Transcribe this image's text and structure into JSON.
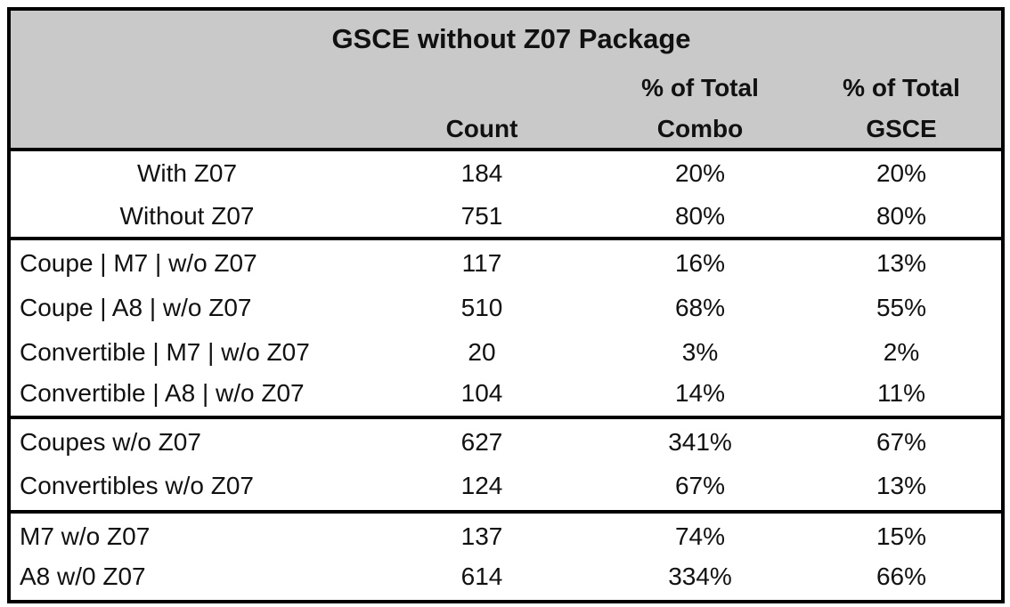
{
  "title": "GSCE without Z07 Package",
  "columns": [
    {
      "lines": [
        "Count"
      ]
    },
    {
      "lines": [
        "% of Total",
        "Combo"
      ]
    },
    {
      "lines": [
        "% of Total",
        "GSCE"
      ]
    }
  ],
  "groups": [
    {
      "rows": [
        [
          "With Z07",
          "184",
          "20%",
          "20%"
        ],
        [
          "Without Z07",
          "751",
          "80%",
          "80%"
        ]
      ]
    },
    {
      "rows": [
        [
          "Coupe | M7 | w/o Z07",
          "117",
          "16%",
          "13%"
        ],
        [
          "Coupe | A8 | w/o Z07",
          "510",
          "68%",
          "55%"
        ],
        [
          "Convertible | M7 | w/o Z07",
          "20",
          "3%",
          "2%"
        ],
        [
          "Convertible | A8 | w/o Z07",
          "104",
          "14%",
          "11%"
        ]
      ]
    },
    {
      "rows": [
        [
          "Coupes w/o Z07",
          "627",
          "341%",
          "67%"
        ],
        [
          "Convertibles w/o Z07",
          "124",
          "67%",
          "13%"
        ]
      ]
    },
    {
      "rows": [
        [
          "M7 w/o Z07",
          "137",
          "74%",
          "15%"
        ],
        [
          "A8 w/0 Z07",
          "614",
          "334%",
          "66%"
        ]
      ]
    }
  ]
}
